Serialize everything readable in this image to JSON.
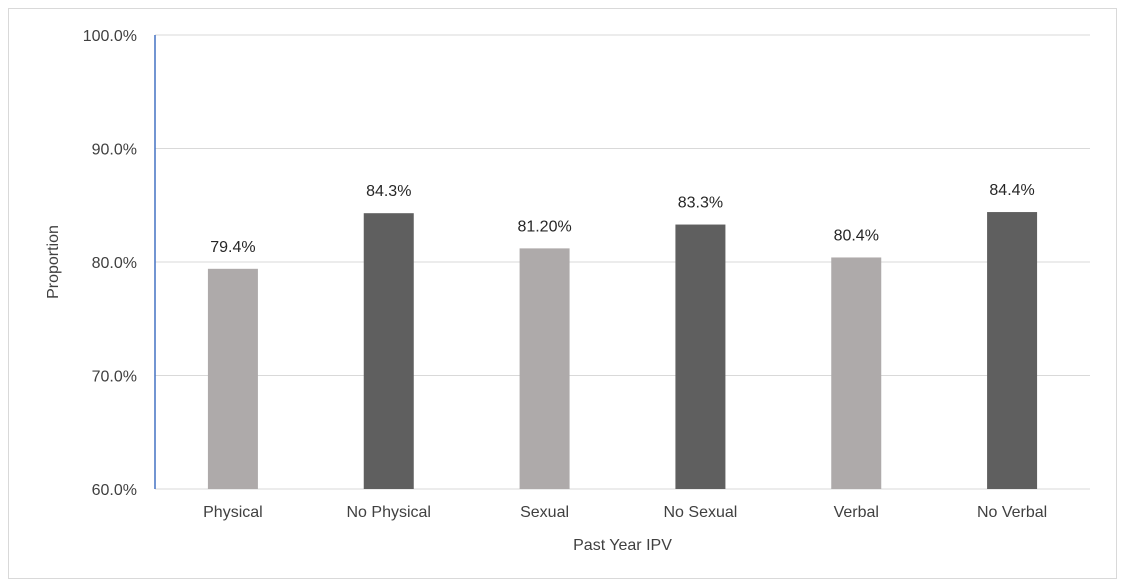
{
  "chart_data": {
    "type": "bar",
    "categories": [
      "Physical",
      "No Physical",
      "Sexual",
      "No Sexual",
      "Verbal",
      "No Verbal"
    ],
    "values": [
      79.4,
      84.3,
      81.2,
      83.3,
      80.4,
      84.4
    ],
    "data_labels": [
      "79.4%",
      "84.3%",
      "81.20%",
      "83.3%",
      "80.4%",
      "84.4%"
    ],
    "bar_colors": [
      "#aeaaaa",
      "#5f5f5f",
      "#aeaaaa",
      "#5f5f5f",
      "#aeaaaa",
      "#5f5f5f"
    ],
    "xlabel": "Past Year IPV",
    "ylabel": "Proportion",
    "ylim": [
      60,
      100
    ],
    "yticks": [
      60,
      70,
      80,
      90,
      100
    ],
    "ytick_labels": [
      "60.0%",
      "70.0%",
      "80.0%",
      "90.0%",
      "100.0%"
    ],
    "grid": true,
    "gridline_color": "#d9d9d9",
    "y_axis_color": "#4472c4",
    "legend": "none"
  }
}
